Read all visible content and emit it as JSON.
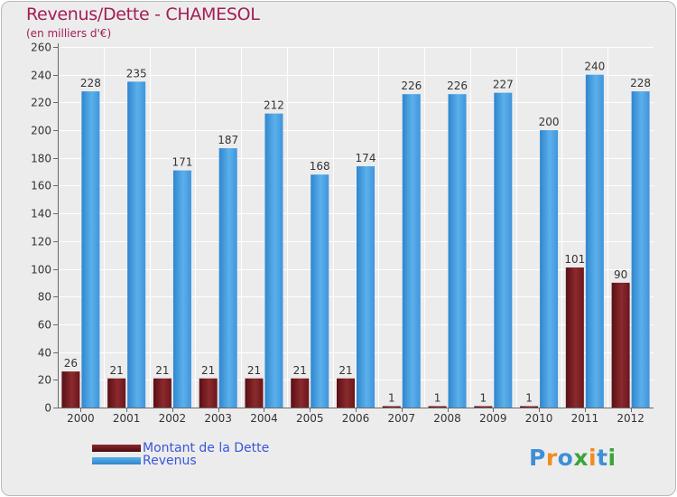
{
  "header": {
    "title": "Revenus/Dette - CHAMESOL",
    "subtitle": "(en milliers d'€)"
  },
  "legend": {
    "items": [
      {
        "label": "Montant de la Dette",
        "color": "#7a1e22"
      },
      {
        "label": "Revenus",
        "color": "#4ea3e3"
      }
    ]
  },
  "logo": {
    "text": "Proxiti",
    "letters": [
      "P",
      "r",
      "o",
      "x",
      "i",
      "t",
      "i"
    ],
    "colors": [
      "#3f8fd6",
      "#f28c1e",
      "#3f8fd6",
      "#3aa53a",
      "#f28c1e",
      "#3f8fd6",
      "#3aa53a"
    ]
  },
  "chart_data": {
    "type": "bar",
    "title": "Revenus/Dette - CHAMESOL",
    "ylabel": "(en milliers d'€)",
    "xlabel": "",
    "categories": [
      "2000",
      "2001",
      "2002",
      "2003",
      "2004",
      "2005",
      "2006",
      "2007",
      "2008",
      "2009",
      "2010",
      "2011",
      "2012"
    ],
    "series": [
      {
        "name": "Montant de la Dette",
        "color": "#7a1e22",
        "values": [
          26,
          21,
          21,
          21,
          21,
          21,
          21,
          1,
          1,
          1,
          1,
          101,
          90
        ]
      },
      {
        "name": "Revenus",
        "color": "#4ea3e3",
        "values": [
          228,
          235,
          171,
          187,
          212,
          168,
          174,
          226,
          226,
          227,
          200,
          240,
          228
        ]
      }
    ],
    "ylim": [
      0,
      260
    ],
    "yticks": [
      0,
      20,
      40,
      60,
      80,
      100,
      120,
      140,
      160,
      180,
      200,
      220,
      240,
      260
    ],
    "grid": true,
    "legend_position": "bottom-left"
  }
}
